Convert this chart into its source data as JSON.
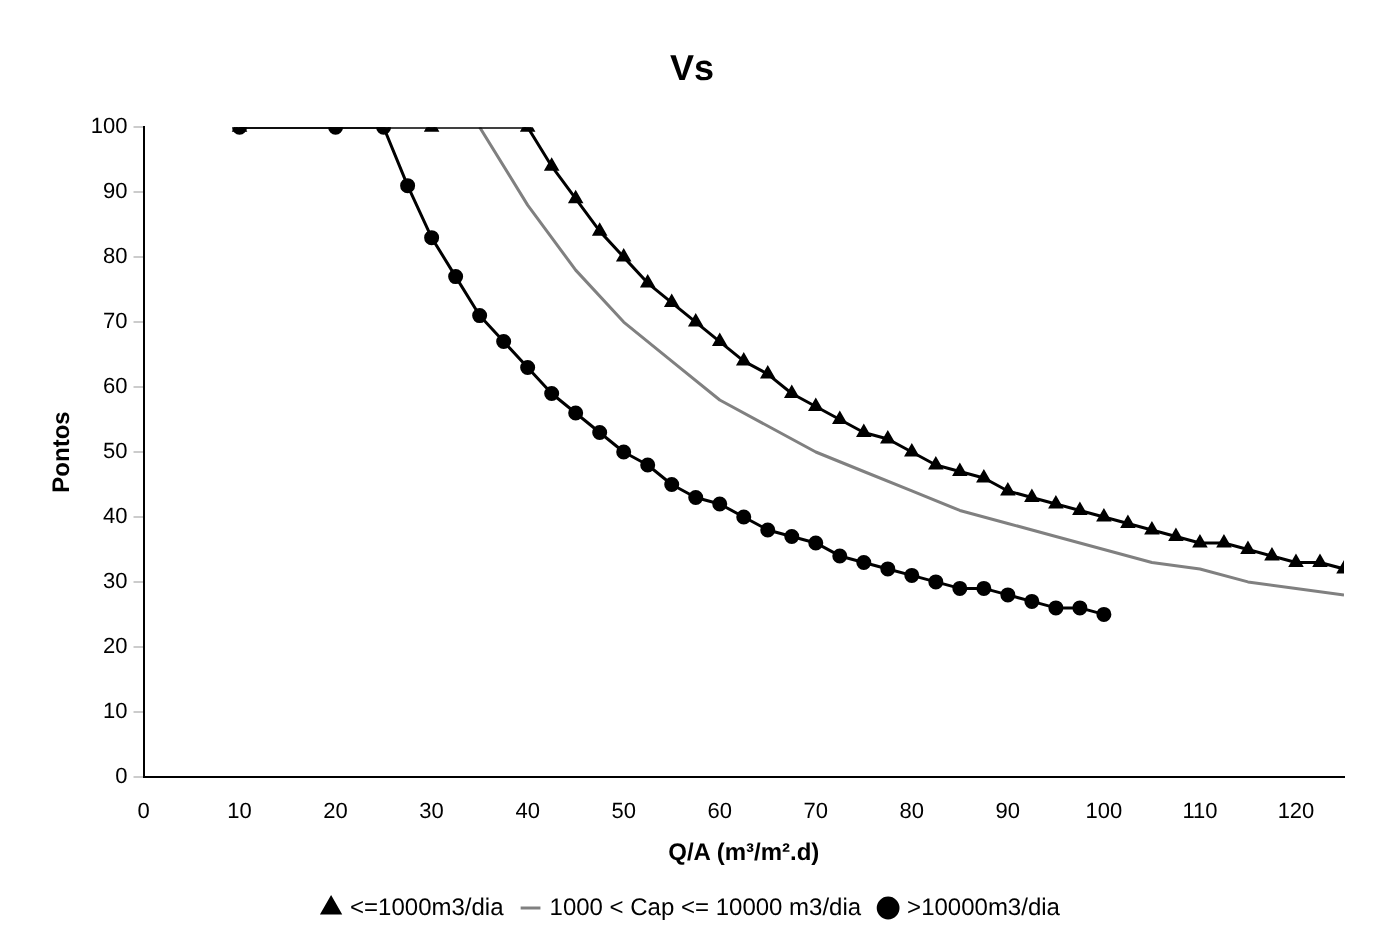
{
  "chart_data": {
    "type": "line",
    "title": "Vs",
    "xlabel": "Q/A (m³/m².d)",
    "ylabel": "Pontos",
    "xlim": [
      0,
      125
    ],
    "xticks": [
      0,
      10,
      20,
      30,
      40,
      50,
      60,
      70,
      80,
      90,
      100,
      110,
      120
    ],
    "ylim": [
      0,
      100
    ],
    "yticks": [
      0,
      10,
      20,
      30,
      40,
      50,
      60,
      70,
      80,
      90,
      100
    ],
    "grid": false,
    "legend": "bottom",
    "line_style": "solid",
    "series": [
      {
        "name": "<=1000m3/dia",
        "color": "#000000",
        "marker": "triangle",
        "x": [
          10,
          30,
          40,
          42.5,
          45,
          47.5,
          50,
          52.5,
          55,
          57.5,
          60,
          62.5,
          65,
          67.5,
          70,
          72.5,
          75,
          77.5,
          80,
          82.5,
          85,
          87.5,
          90,
          92.5,
          95,
          97.5,
          100,
          102.5,
          105,
          107.5,
          110,
          112.5,
          115,
          117.5,
          120,
          122.5,
          125
        ],
        "values": [
          100,
          100,
          100,
          94,
          89,
          84,
          80,
          76,
          73,
          70,
          67,
          64,
          62,
          59,
          57,
          55,
          53,
          52,
          50,
          48,
          47,
          46,
          44,
          43,
          42,
          41,
          40,
          39,
          38,
          37,
          36,
          36,
          35,
          34,
          33,
          33,
          32
        ]
      },
      {
        "name": "1000 < Cap <= 10000 m3/dia",
        "color": "#808080",
        "marker": "none",
        "x": [
          35,
          40,
          45,
          50,
          55,
          60,
          65,
          70,
          75,
          80,
          85,
          90,
          95,
          100,
          105,
          110,
          115,
          120,
          125
        ],
        "values": [
          100,
          88,
          78,
          70,
          64,
          58,
          54,
          50,
          47,
          44,
          41,
          39,
          37,
          35,
          33,
          32,
          30,
          29,
          28
        ]
      },
      {
        "name": ">10000m3/dia",
        "color": "#000000",
        "marker": "circle",
        "x": [
          10,
          20,
          25,
          27.5,
          30,
          32.5,
          35,
          37.5,
          40,
          42.5,
          45,
          47.5,
          50,
          52.5,
          55,
          57.5,
          60,
          62.5,
          65,
          67.5,
          70,
          72.5,
          75,
          77.5,
          80,
          82.5,
          85,
          87.5,
          90,
          92.5,
          95,
          97.5,
          100
        ],
        "values": [
          100,
          100,
          100,
          91,
          83,
          77,
          71,
          67,
          63,
          59,
          56,
          53,
          50,
          48,
          45,
          43,
          42,
          40,
          38,
          37,
          36,
          34,
          33,
          32,
          31,
          30,
          29,
          29,
          28,
          27,
          26,
          26,
          25
        ]
      }
    ]
  }
}
